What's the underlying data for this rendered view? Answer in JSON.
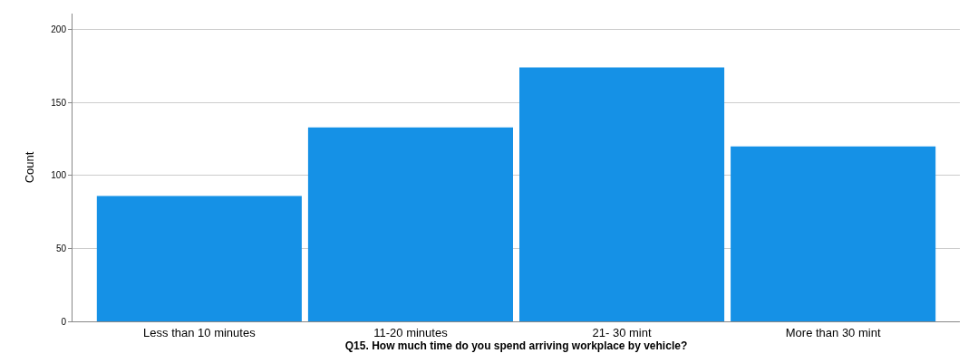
{
  "chart_data": {
    "type": "bar",
    "xlabel": "Q15. How much time do you spend arriving workplace by vehicle?",
    "ylabel": "Count",
    "categories": [
      "Less than 10 minutes",
      "11-20 minutes",
      "21- 30 mint",
      "More than 30 mint"
    ],
    "values": [
      86,
      133,
      174,
      120
    ],
    "color": "#1591e6",
    "ylim": [
      0,
      211
    ],
    "yticks": [
      0,
      50,
      100,
      150,
      200
    ],
    "grid": "y"
  }
}
